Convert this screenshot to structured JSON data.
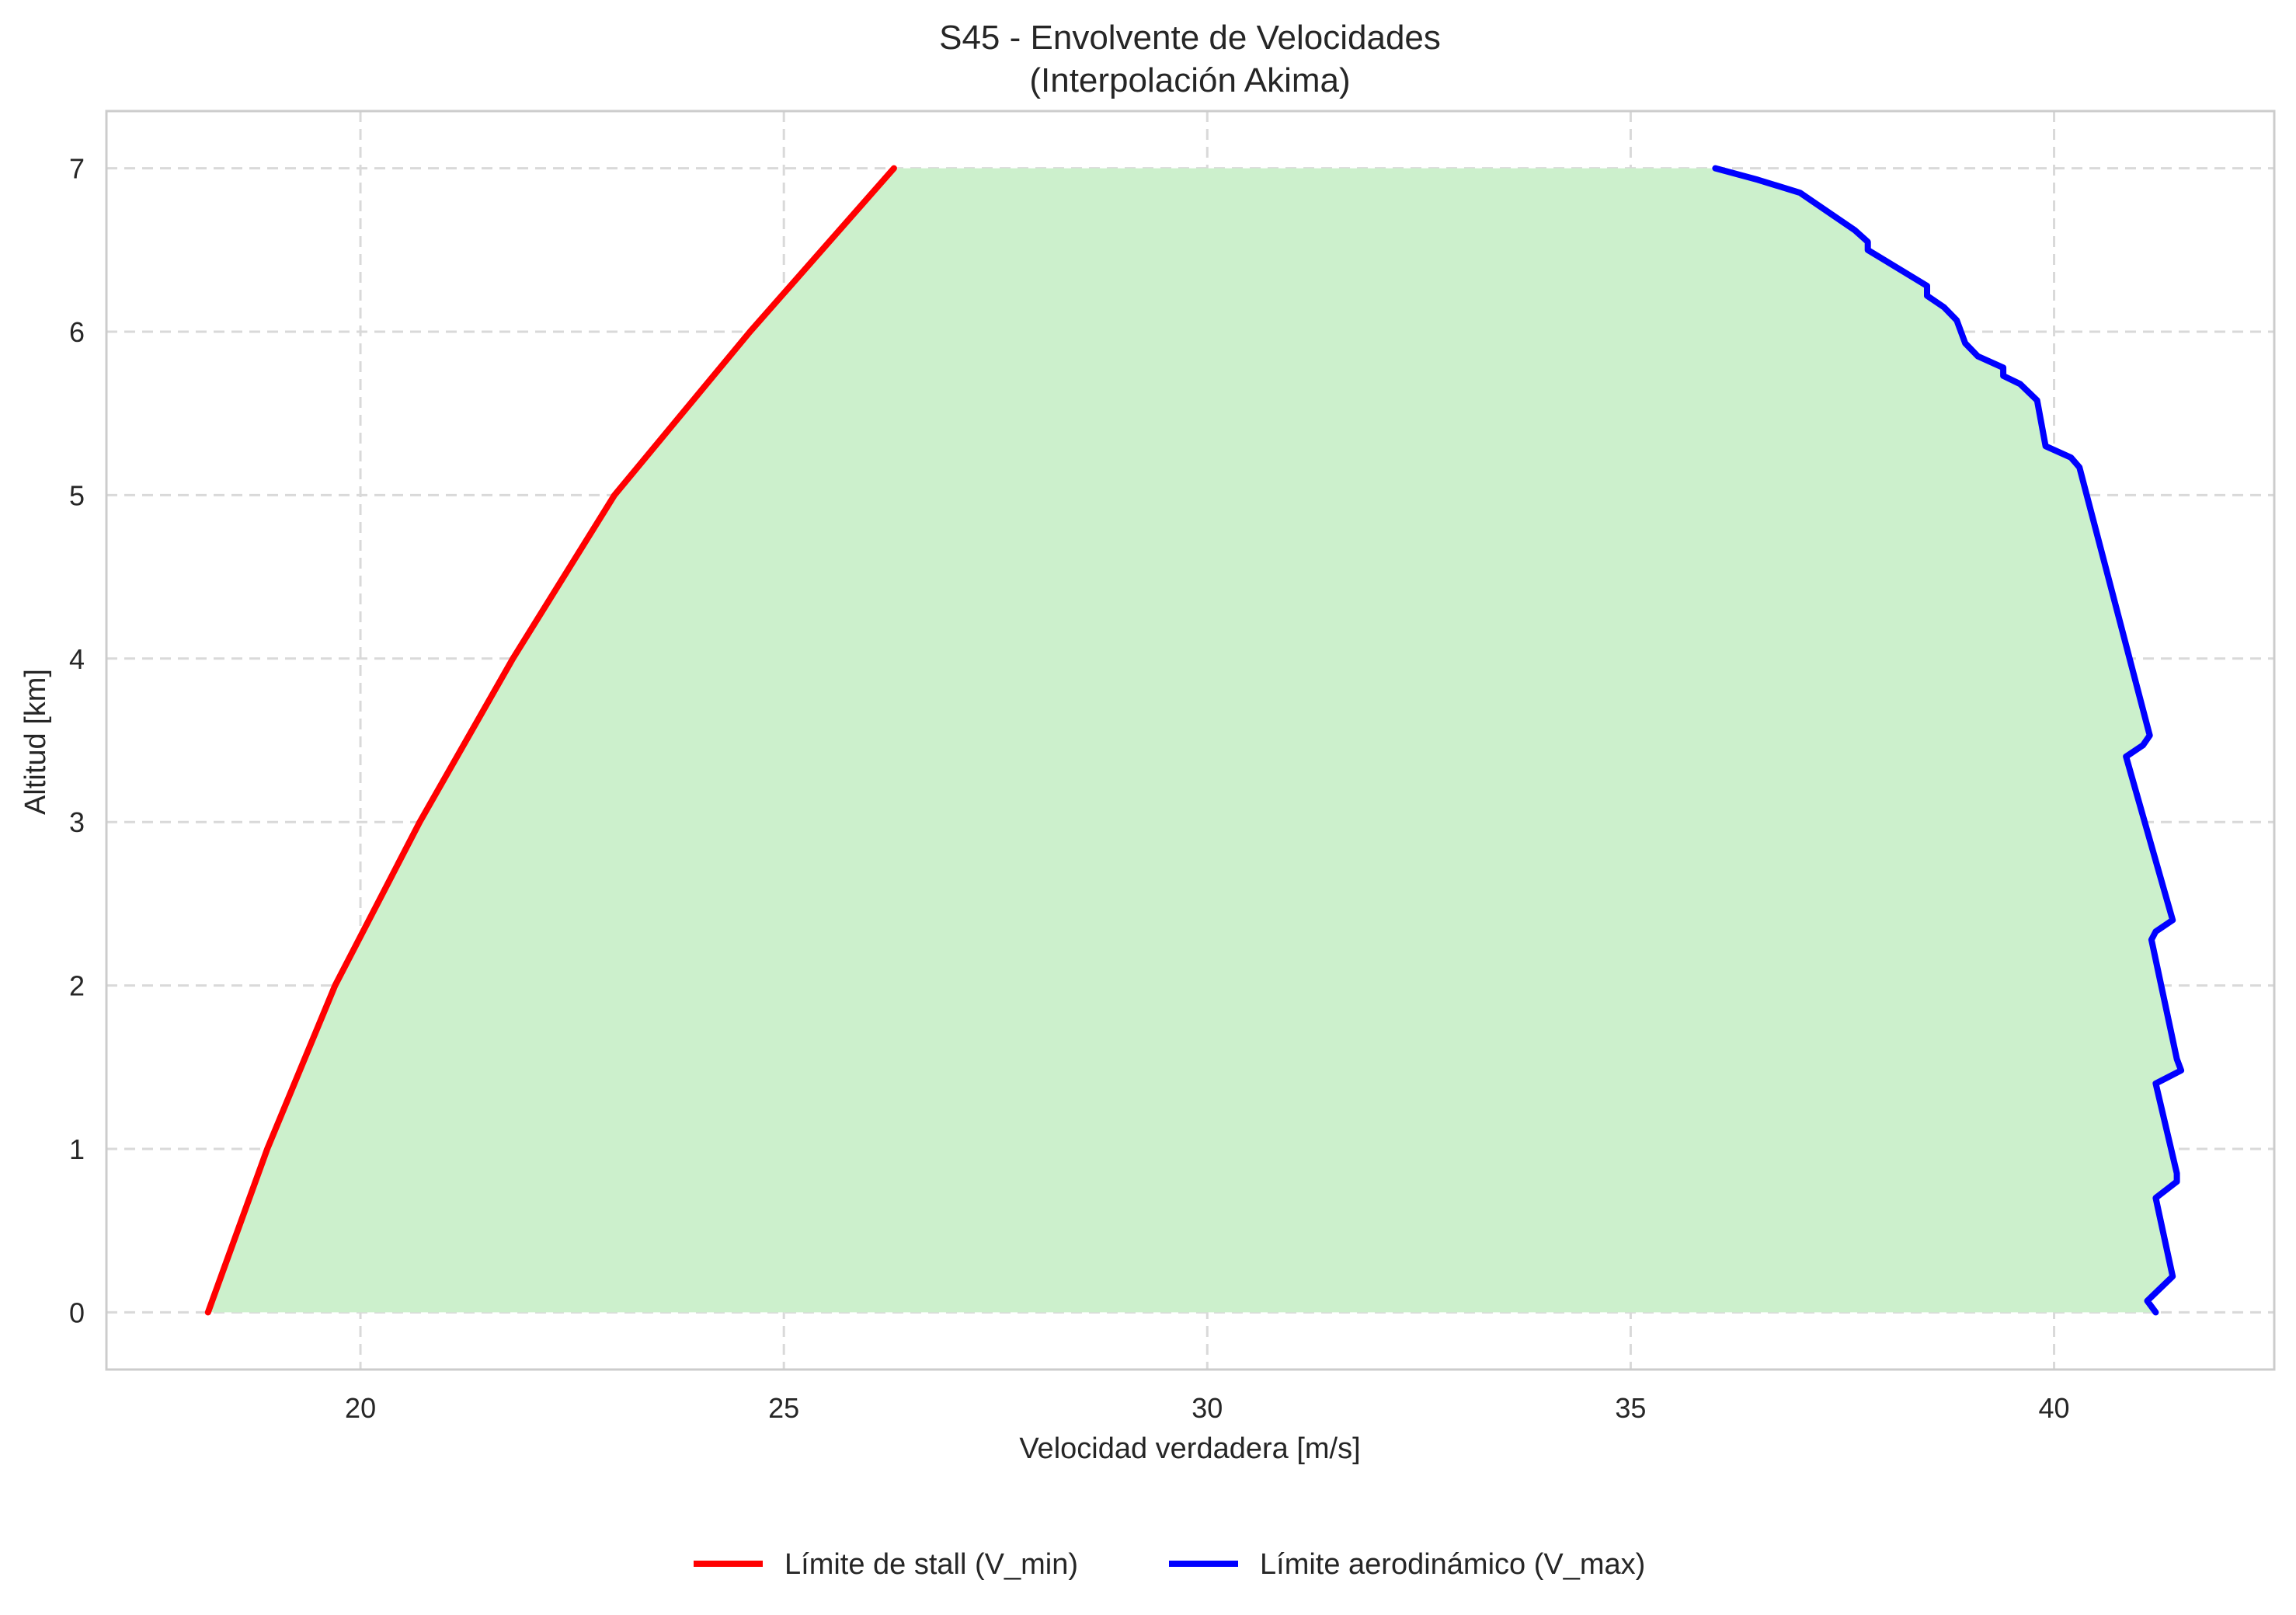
{
  "chart_data": {
    "type": "line",
    "title": "S45 - Envolvente de Velocidades",
    "subtitle": "(Interpolación Akima)",
    "xlabel": "Velocidad verdadera [m/s]",
    "ylabel": "Altitud [km]",
    "xlim": [
      17.0,
      42.6
    ],
    "ylim": [
      -0.35,
      7.35
    ],
    "x_ticks": [
      20,
      25,
      30,
      35,
      40
    ],
    "y_ticks": [
      0,
      1,
      2,
      3,
      4,
      5,
      6,
      7
    ],
    "grid": true,
    "legend_position": "bottom-center",
    "fill_color": "#ccf0cc",
    "series": [
      {
        "name": "Límite de stall (V_min)",
        "color": "#ff0000",
        "points": [
          {
            "x": 18.2,
            "y": 0.0
          },
          {
            "x": 18.9,
            "y": 1.0
          },
          {
            "x": 19.7,
            "y": 2.0
          },
          {
            "x": 20.7,
            "y": 3.0
          },
          {
            "x": 21.8,
            "y": 4.0
          },
          {
            "x": 23.0,
            "y": 5.0
          },
          {
            "x": 24.6,
            "y": 6.0
          },
          {
            "x": 26.3,
            "y": 7.0
          }
        ]
      },
      {
        "name": "Límite aerodinámico (V_max)",
        "color": "#0000ff",
        "points": [
          {
            "x": 41.2,
            "y": 0.0
          },
          {
            "x": 41.1,
            "y": 0.07
          },
          {
            "x": 41.4,
            "y": 0.22
          },
          {
            "x": 41.2,
            "y": 0.7
          },
          {
            "x": 41.45,
            "y": 0.8
          },
          {
            "x": 41.45,
            "y": 0.85
          },
          {
            "x": 41.2,
            "y": 1.4
          },
          {
            "x": 41.5,
            "y": 1.48
          },
          {
            "x": 41.45,
            "y": 1.55
          },
          {
            "x": 41.15,
            "y": 2.28
          },
          {
            "x": 41.2,
            "y": 2.33
          },
          {
            "x": 41.4,
            "y": 2.4
          },
          {
            "x": 40.85,
            "y": 3.4
          },
          {
            "x": 41.05,
            "y": 3.47
          },
          {
            "x": 41.13,
            "y": 3.53
          },
          {
            "x": 40.3,
            "y": 5.17
          },
          {
            "x": 40.2,
            "y": 5.23
          },
          {
            "x": 39.9,
            "y": 5.3
          },
          {
            "x": 39.8,
            "y": 5.58
          },
          {
            "x": 39.6,
            "y": 5.68
          },
          {
            "x": 39.4,
            "y": 5.73
          },
          {
            "x": 39.4,
            "y": 5.78
          },
          {
            "x": 39.1,
            "y": 5.85
          },
          {
            "x": 38.95,
            "y": 5.93
          },
          {
            "x": 38.85,
            "y": 6.07
          },
          {
            "x": 38.7,
            "y": 6.15
          },
          {
            "x": 38.5,
            "y": 6.22
          },
          {
            "x": 38.5,
            "y": 6.28
          },
          {
            "x": 37.8,
            "y": 6.5
          },
          {
            "x": 37.8,
            "y": 6.55
          },
          {
            "x": 37.65,
            "y": 6.62
          },
          {
            "x": 37.0,
            "y": 6.85
          },
          {
            "x": 36.5,
            "y": 6.93
          },
          {
            "x": 36.0,
            "y": 7.0
          }
        ]
      }
    ]
  }
}
